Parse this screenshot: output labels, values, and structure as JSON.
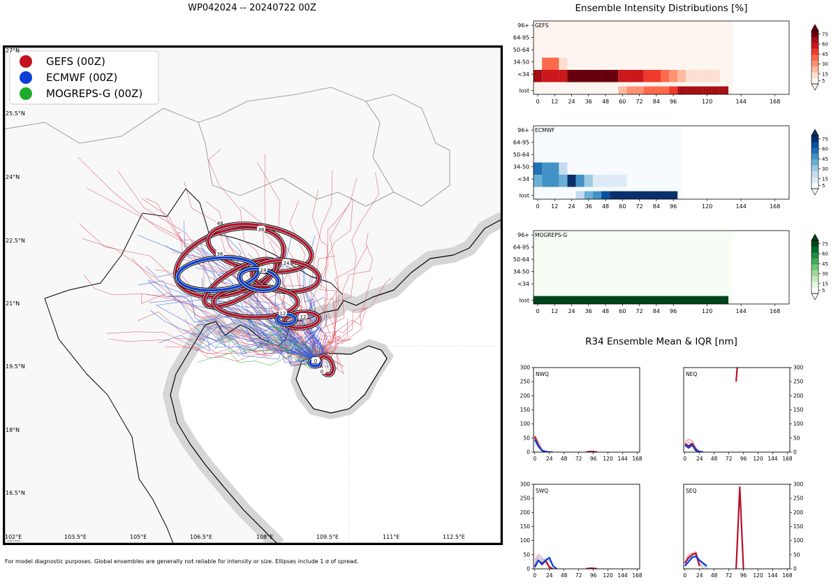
{
  "page": {
    "title": "WP042024 -- 20240722 00Z",
    "intensity_title": "Ensemble Intensity Distributions [%]",
    "r34_title": "R34 Ensemble Mean & IQR [nm]",
    "footnote": "For model diagnostic purposes. Global ensembles are generally not reliable for intensity or size. Ellipses include 1 σ of spread."
  },
  "colors": {
    "gefs": "#b5102a",
    "ecmwf": "#0b3fd6",
    "mogreps": "#1faa2a",
    "land": "#f8f8f8",
    "coast_halo": "#cfcfcf"
  },
  "map": {
    "legend": [
      {
        "label": "GEFS (00Z)",
        "color": "#c21021"
      },
      {
        "label": "ECMWF (00Z)",
        "color": "#0b3fd6"
      },
      {
        "label": "MOGREPS-G (00Z)",
        "color": "#1faa2a"
      }
    ],
    "lat_labels": [
      "27°N",
      "25.5°N",
      "24°N",
      "22.5°N",
      "21°N",
      "19.5°N",
      "18°N",
      "16.5°N"
    ],
    "lon_labels": [
      "102°E",
      "103.5°E",
      "105°E",
      "106.5°E",
      "108°E",
      "109.5°E",
      "111°E",
      "112.5°E"
    ],
    "lon_range": [
      102,
      113.9
    ],
    "lat_range": [
      16.0,
      27.2
    ],
    "ellipse_labels": {
      "gefs": [
        "0",
        "12",
        "24",
        "36",
        "48"
      ],
      "ecmwf": [
        "0",
        "12",
        "24",
        "36"
      ]
    },
    "credit": "map credit"
  },
  "chart_data": [
    {
      "type": "heatmap",
      "title": "GEFS",
      "colormap": "Reds",
      "x_ticks": [
        "0",
        "12",
        "24",
        "36",
        "48",
        "60",
        "72",
        "84",
        "96",
        "120",
        "144",
        "168"
      ],
      "y_categories": [
        "lost",
        "<34",
        "34-50",
        "50-64",
        "64-95",
        "96+"
      ],
      "colorbar_ticks": [
        "5",
        "15",
        "30",
        "45",
        "60",
        "75"
      ],
      "colorbar_range": [
        0,
        80
      ],
      "columns": [
        {
          "t": 0,
          "w": 6,
          "v": [
            0,
            85,
            2,
            0,
            0,
            0
          ]
        },
        {
          "t": 6,
          "w": 12,
          "v": [
            0,
            70,
            45,
            0,
            0,
            0
          ]
        },
        {
          "t": 18,
          "w": 6,
          "v": [
            0,
            70,
            14,
            0,
            0,
            0
          ]
        },
        {
          "t": 24,
          "w": 24,
          "v": [
            0,
            90,
            2,
            0,
            0,
            0
          ]
        },
        {
          "t": 48,
          "w": 12,
          "v": [
            5,
            90,
            0,
            0,
            0,
            0
          ]
        },
        {
          "t": 60,
          "w": 6,
          "v": [
            20,
            70,
            0,
            0,
            0,
            0
          ]
        },
        {
          "t": 66,
          "w": 12,
          "v": [
            40,
            70,
            0,
            0,
            0,
            0
          ]
        },
        {
          "t": 78,
          "w": 12,
          "v": [
            52,
            55,
            0,
            0,
            0,
            0
          ]
        },
        {
          "t": 90,
          "w": 6,
          "v": [
            45,
            42,
            0,
            0,
            0,
            0
          ]
        },
        {
          "t": 96,
          "w": 6,
          "v": [
            65,
            40,
            0,
            0,
            0,
            0
          ]
        },
        {
          "t": 102,
          "w": 6,
          "v": [
            80,
            18,
            0,
            0,
            0,
            0
          ]
        },
        {
          "t": 108,
          "w": 12,
          "v": [
            80,
            12,
            0,
            0,
            0,
            0
          ]
        },
        {
          "t": 120,
          "w": 12,
          "v": [
            85,
            12,
            0,
            0,
            0,
            0
          ]
        },
        {
          "t": 132,
          "w": 6,
          "v": [
            85,
            0,
            0,
            0,
            0,
            0
          ]
        }
      ]
    },
    {
      "type": "heatmap",
      "title": "ECMWF",
      "colormap": "Blues",
      "x_ticks": [
        "0",
        "12",
        "24",
        "36",
        "48",
        "60",
        "72",
        "84",
        "96",
        "120",
        "144",
        "168"
      ],
      "y_categories": [
        "lost",
        "<34",
        "34-50",
        "50-64",
        "64-95",
        "96+"
      ],
      "colorbar_ticks": [
        "5",
        "15",
        "30",
        "45",
        "60",
        "75"
      ],
      "colorbar_range": [
        0,
        80
      ],
      "columns": [
        {
          "t": 0,
          "w": 6,
          "v": [
            0,
            45,
            70,
            0,
            0,
            0
          ]
        },
        {
          "t": 6,
          "w": 12,
          "v": [
            0,
            55,
            55,
            0,
            0,
            0
          ]
        },
        {
          "t": 18,
          "w": 6,
          "v": [
            0,
            45,
            20,
            0,
            0,
            0
          ]
        },
        {
          "t": 24,
          "w": 6,
          "v": [
            0,
            90,
            3,
            0,
            0,
            0
          ]
        },
        {
          "t": 30,
          "w": 6,
          "v": [
            25,
            65,
            0,
            0,
            0,
            0
          ]
        },
        {
          "t": 36,
          "w": 6,
          "v": [
            45,
            35,
            0,
            0,
            0,
            0
          ]
        },
        {
          "t": 42,
          "w": 6,
          "v": [
            55,
            15,
            0,
            0,
            0,
            0
          ]
        },
        {
          "t": 48,
          "w": 6,
          "v": [
            85,
            10,
            0,
            0,
            0,
            0
          ]
        },
        {
          "t": 54,
          "w": 12,
          "v": [
            90,
            8,
            0,
            0,
            0,
            0
          ]
        },
        {
          "t": 66,
          "w": 36,
          "v": [
            95,
            0,
            0,
            0,
            0,
            0
          ]
        }
      ]
    },
    {
      "type": "heatmap",
      "title": "MOGREPS-G",
      "colormap": "Greens",
      "x_ticks": [
        "0",
        "12",
        "24",
        "36",
        "48",
        "60",
        "72",
        "84",
        "96",
        "120",
        "144",
        "168"
      ],
      "y_categories": [
        "lost",
        "<34",
        "34-50",
        "50-64",
        "64-95",
        "96+"
      ],
      "colorbar_ticks": [
        "5",
        "15",
        "30",
        "45",
        "60",
        "75"
      ],
      "colorbar_range": [
        0,
        80
      ],
      "columns": [
        {
          "t": 0,
          "w": 138,
          "v": [
            95,
            0,
            0,
            0,
            0,
            0
          ]
        }
      ]
    },
    {
      "type": "line",
      "title": "NWQ",
      "x_ticks": [
        "0",
        "24",
        "48",
        "72",
        "96",
        "120",
        "144",
        "168"
      ],
      "y_ticks": [
        "0",
        "50",
        "100",
        "150",
        "200",
        "250",
        "300"
      ],
      "xlim": [
        -2,
        172
      ],
      "ylim": [
        0,
        300
      ],
      "series": [
        {
          "name": "GEFS IQR",
          "color": "#f0b4bb",
          "x": [
            0,
            6,
            12,
            18
          ],
          "y": [
            60,
            35,
            10,
            0
          ]
        },
        {
          "name": "ECMWF IQR",
          "color": "#b7c9f5",
          "x": [
            0,
            6,
            12,
            18,
            24,
            30
          ],
          "y": [
            55,
            30,
            10,
            3,
            0,
            0
          ]
        },
        {
          "name": "GEFS mean",
          "color": "#b5102a",
          "x": [
            0,
            6,
            12,
            18,
            24
          ],
          "y": [
            55,
            25,
            5,
            0,
            0
          ]
        },
        {
          "name": "ECMWF mean",
          "color": "#0b3fd6",
          "x": [
            0,
            6,
            12,
            18,
            24,
            30
          ],
          "y": [
            45,
            20,
            5,
            2,
            0,
            0
          ]
        },
        {
          "name": "GEFS late",
          "color": "#b5102a",
          "x": [
            84,
            90,
            96,
            102
          ],
          "y": [
            0,
            2,
            2,
            0
          ]
        }
      ]
    },
    {
      "type": "line",
      "title": "NEQ",
      "x_ticks": [
        "0",
        "24",
        "48",
        "72",
        "96",
        "120",
        "144",
        "168"
      ],
      "y_ticks": [
        "0",
        "50",
        "100",
        "150",
        "200",
        "250",
        "300"
      ],
      "xlim": [
        -2,
        172
      ],
      "ylim": [
        0,
        300
      ],
      "series": [
        {
          "name": "GEFS IQR",
          "color": "#f0b4bb",
          "x": [
            0,
            6,
            12,
            18,
            24
          ],
          "y": [
            35,
            45,
            40,
            15,
            0
          ]
        },
        {
          "name": "ECMWF IQR",
          "color": "#b7c9f5",
          "x": [
            0,
            6,
            12,
            18,
            24,
            30
          ],
          "y": [
            20,
            35,
            30,
            10,
            3,
            0
          ]
        },
        {
          "name": "GEFS mean",
          "color": "#b5102a",
          "x": [
            0,
            6,
            12,
            18,
            24
          ],
          "y": [
            30,
            22,
            30,
            10,
            0
          ]
        },
        {
          "name": "ECMWF mean",
          "color": "#0b3fd6",
          "x": [
            0,
            6,
            12,
            18,
            24,
            30
          ],
          "y": [
            25,
            15,
            25,
            5,
            2,
            0
          ]
        },
        {
          "name": "GEFS spike",
          "color": "#b5102a",
          "x": [
            84,
            85,
            86
          ],
          "y": [
            250,
            280,
            305
          ]
        }
      ]
    },
    {
      "type": "line",
      "title": "SWQ",
      "x_ticks": [
        "0",
        "24",
        "48",
        "72",
        "96",
        "120",
        "144",
        "168"
      ],
      "y_ticks": [
        "0",
        "50",
        "100",
        "150",
        "200",
        "250",
        "300"
      ],
      "xlim": [
        -2,
        172
      ],
      "ylim": [
        0,
        300
      ],
      "series": [
        {
          "name": "GEFS IQR",
          "color": "#f0b4bb",
          "x": [
            0,
            6,
            12,
            18,
            24,
            30
          ],
          "y": [
            30,
            50,
            40,
            20,
            10,
            0
          ]
        },
        {
          "name": "ECMWF IQR",
          "color": "#b7c9f5",
          "x": [
            0,
            6,
            12,
            18,
            24,
            30,
            36
          ],
          "y": [
            20,
            40,
            30,
            35,
            30,
            10,
            0
          ]
        },
        {
          "name": "GEFS mean",
          "color": "#b5102a",
          "x": [
            0,
            6,
            12,
            18,
            24,
            30
          ],
          "y": [
            10,
            30,
            20,
            30,
            5,
            0
          ]
        },
        {
          "name": "ECMWF mean",
          "color": "#0b3fd6",
          "x": [
            0,
            6,
            12,
            18,
            24,
            30,
            36
          ],
          "y": [
            5,
            30,
            15,
            30,
            40,
            10,
            0
          ]
        },
        {
          "name": "GEFS late",
          "color": "#b5102a",
          "x": [
            84,
            90,
            96,
            102
          ],
          "y": [
            0,
            2,
            2,
            0
          ]
        }
      ]
    },
    {
      "type": "line",
      "title": "SEQ",
      "x_ticks": [
        "0",
        "24",
        "48",
        "72",
        "96",
        "120",
        "144",
        "168"
      ],
      "y_ticks": [
        "0",
        "50",
        "100",
        "150",
        "200",
        "250",
        "300"
      ],
      "xlim": [
        -2,
        172
      ],
      "ylim": [
        0,
        300
      ],
      "series": [
        {
          "name": "GEFS IQR",
          "color": "#f0b4bb",
          "x": [
            0,
            6,
            12,
            18,
            24,
            30
          ],
          "y": [
            20,
            50,
            55,
            60,
            20,
            0
          ]
        },
        {
          "name": "ECMWF IQR",
          "color": "#b7c9f5",
          "x": [
            0,
            6,
            12,
            18,
            24,
            30,
            36
          ],
          "y": [
            15,
            35,
            45,
            40,
            30,
            15,
            0
          ]
        },
        {
          "name": "GEFS mean",
          "color": "#b5102a",
          "x": [
            0,
            6,
            12,
            18,
            24
          ],
          "y": [
            20,
            40,
            50,
            55,
            10
          ]
        },
        {
          "name": "ECMWF mean",
          "color": "#0b3fd6",
          "x": [
            0,
            6,
            12,
            18,
            24,
            30,
            36
          ],
          "y": [
            10,
            25,
            40,
            45,
            30,
            20,
            10
          ]
        },
        {
          "name": "GEFS spike",
          "color": "#b5102a",
          "x": [
            84,
            90,
            96
          ],
          "y": [
            0,
            290,
            0
          ]
        }
      ]
    }
  ]
}
